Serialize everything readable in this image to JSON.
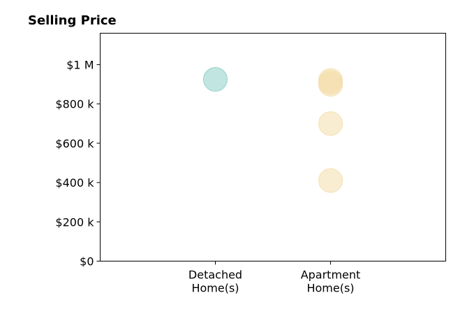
{
  "chart_data": {
    "type": "scatter",
    "title": "Selling Price",
    "xlabel": "",
    "ylabel": "",
    "categories": [
      "Detached\nHome(s)",
      "Apartment\nHome(s)"
    ],
    "x_range": [
      -1,
      2
    ],
    "ylim": [
      0,
      1160000
    ],
    "y_ticks": [
      0,
      200000,
      400000,
      600000,
      800000,
      1000000
    ],
    "y_tick_labels": [
      "$0",
      "$200 k",
      "$400 k",
      "$600 k",
      "$800 k",
      "$1 M"
    ],
    "grid": false,
    "legend": "none",
    "series": [
      {
        "category_index": 0,
        "color": "#8ecfc7",
        "values": [
          925000
        ]
      },
      {
        "category_index": 1,
        "color": "#f4deac",
        "values": [
          920000,
          900000,
          910000,
          700000,
          410000
        ]
      }
    ]
  }
}
